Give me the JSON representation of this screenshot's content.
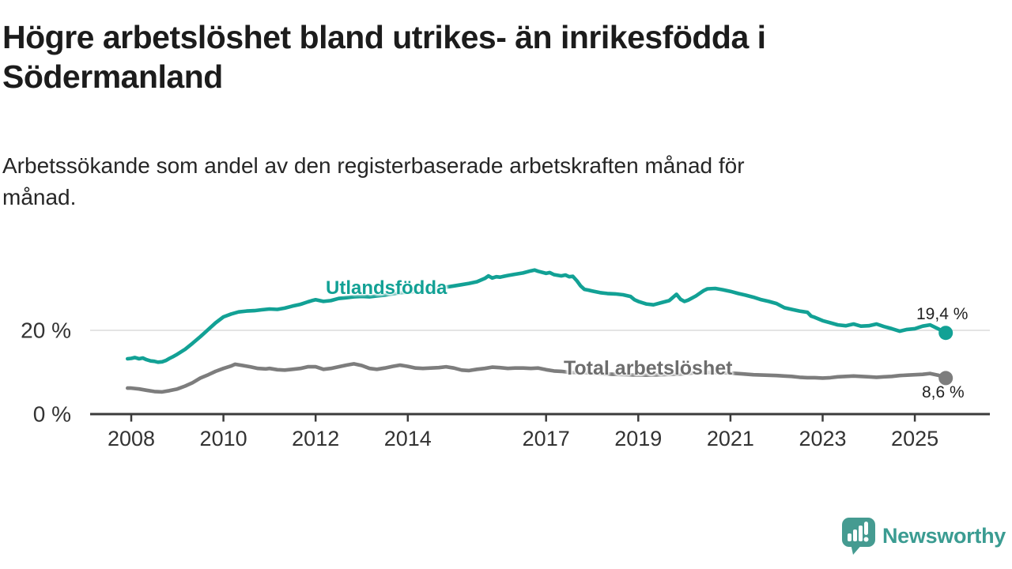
{
  "header": {
    "title_line1": "Högre arbetslöshet bland utrikes- än inrikesfödda i",
    "title_line2": "Södermanland",
    "subtitle_line1": "Arbetssökande som andel av den registerbaserade arbetskraften månad för",
    "subtitle_line2": "månad."
  },
  "colors": {
    "accent_teal": "#12a195",
    "series_gray": "#7d7d7d",
    "series_label_gray": "#6d6d6d",
    "axis": "#3b3b3b",
    "tick_text": "#333333",
    "gridline": "#dbdbdb",
    "logo_teal": "#459b91"
  },
  "branding": {
    "logo_text": "Newsworthy",
    "logo_icon": "speech-bubble-bar-chart"
  },
  "chart_data": {
    "type": "line",
    "title": "Högre arbetslöshet bland utrikes- än inrikesfödda i Södermanland",
    "subtitle": "Arbetssökande som andel av den registerbaserade arbetskraften månad för månad.",
    "unit": "%",
    "ylim": [
      0,
      36
    ],
    "grid": "y-at-20-only",
    "legend_position": "inline-labels",
    "yticks": [
      {
        "value": 0,
        "label": "0 %"
      },
      {
        "value": 20,
        "label": "20 %"
      }
    ],
    "xticks": [
      {
        "value": 2008,
        "label": "2008"
      },
      {
        "value": 2010,
        "label": "2010"
      },
      {
        "value": 2012,
        "label": "2012"
      },
      {
        "value": 2014,
        "label": "2014"
      },
      {
        "value": 2017,
        "label": "2017"
      },
      {
        "value": 2019,
        "label": "2019"
      },
      {
        "value": 2021,
        "label": "2021"
      },
      {
        "value": 2023,
        "label": "2023"
      },
      {
        "value": 2025,
        "label": "2025"
      }
    ],
    "series": [
      {
        "name": "Utlandsfödda",
        "color": "#12a195",
        "end_label": "19,4 %",
        "latest_value": 19.4,
        "points": [
          [
            2007.92,
            13.2
          ],
          [
            2008.0,
            13.3
          ],
          [
            2008.08,
            13.5
          ],
          [
            2008.17,
            13.2
          ],
          [
            2008.25,
            13.4
          ],
          [
            2008.33,
            13.0
          ],
          [
            2008.42,
            12.7
          ],
          [
            2008.5,
            12.6
          ],
          [
            2008.58,
            12.4
          ],
          [
            2008.67,
            12.5
          ],
          [
            2008.75,
            12.8
          ],
          [
            2008.83,
            13.3
          ],
          [
            2008.92,
            13.8
          ],
          [
            2009.0,
            14.3
          ],
          [
            2009.17,
            15.5
          ],
          [
            2009.33,
            16.9
          ],
          [
            2009.5,
            18.5
          ],
          [
            2009.67,
            20.2
          ],
          [
            2009.83,
            21.8
          ],
          [
            2010.0,
            23.2
          ],
          [
            2010.17,
            23.9
          ],
          [
            2010.33,
            24.4
          ],
          [
            2010.5,
            24.6
          ],
          [
            2010.67,
            24.7
          ],
          [
            2010.83,
            24.9
          ],
          [
            2011.0,
            25.1
          ],
          [
            2011.17,
            25.0
          ],
          [
            2011.33,
            25.3
          ],
          [
            2011.5,
            25.8
          ],
          [
            2011.67,
            26.2
          ],
          [
            2011.83,
            26.8
          ],
          [
            2011.92,
            27.1
          ],
          [
            2012.0,
            27.3
          ],
          [
            2012.17,
            26.9
          ],
          [
            2012.33,
            27.1
          ],
          [
            2012.5,
            27.6
          ],
          [
            2012.67,
            27.8
          ],
          [
            2012.83,
            28.0
          ],
          [
            2013.0,
            28.1
          ],
          [
            2013.17,
            28.0
          ],
          [
            2013.33,
            28.2
          ],
          [
            2013.5,
            28.4
          ],
          [
            2013.67,
            28.7
          ],
          [
            2013.83,
            29.0
          ],
          [
            2014.0,
            29.1
          ],
          [
            2014.17,
            29.3
          ],
          [
            2014.33,
            29.5
          ],
          [
            2014.5,
            29.8
          ],
          [
            2014.67,
            30.0
          ],
          [
            2014.83,
            30.3
          ],
          [
            2015.0,
            30.6
          ],
          [
            2015.17,
            30.9
          ],
          [
            2015.33,
            31.2
          ],
          [
            2015.5,
            31.6
          ],
          [
            2015.67,
            32.4
          ],
          [
            2015.75,
            33.0
          ],
          [
            2015.83,
            32.5
          ],
          [
            2015.92,
            32.8
          ],
          [
            2016.0,
            32.7
          ],
          [
            2016.17,
            33.1
          ],
          [
            2016.33,
            33.4
          ],
          [
            2016.5,
            33.7
          ],
          [
            2016.67,
            34.2
          ],
          [
            2016.75,
            34.4
          ],
          [
            2016.83,
            34.1
          ],
          [
            2017.0,
            33.6
          ],
          [
            2017.08,
            33.8
          ],
          [
            2017.17,
            33.3
          ],
          [
            2017.33,
            33.0
          ],
          [
            2017.42,
            33.2
          ],
          [
            2017.5,
            32.8
          ],
          [
            2017.58,
            32.9
          ],
          [
            2017.67,
            31.8
          ],
          [
            2017.75,
            30.6
          ],
          [
            2017.83,
            29.8
          ],
          [
            2017.92,
            29.6
          ],
          [
            2018.0,
            29.4
          ],
          [
            2018.17,
            29.0
          ],
          [
            2018.33,
            28.8
          ],
          [
            2018.5,
            28.7
          ],
          [
            2018.67,
            28.5
          ],
          [
            2018.83,
            28.1
          ],
          [
            2018.92,
            27.3
          ],
          [
            2019.0,
            26.9
          ],
          [
            2019.17,
            26.3
          ],
          [
            2019.33,
            26.1
          ],
          [
            2019.5,
            26.6
          ],
          [
            2019.67,
            27.1
          ],
          [
            2019.83,
            28.6
          ],
          [
            2019.92,
            27.4
          ],
          [
            2020.0,
            26.9
          ],
          [
            2020.08,
            27.2
          ],
          [
            2020.25,
            28.2
          ],
          [
            2020.42,
            29.5
          ],
          [
            2020.5,
            29.9
          ],
          [
            2020.67,
            30.0
          ],
          [
            2020.83,
            29.7
          ],
          [
            2021.0,
            29.3
          ],
          [
            2021.17,
            28.8
          ],
          [
            2021.33,
            28.4
          ],
          [
            2021.5,
            27.9
          ],
          [
            2021.67,
            27.3
          ],
          [
            2021.83,
            26.9
          ],
          [
            2022.0,
            26.4
          ],
          [
            2022.17,
            25.4
          ],
          [
            2022.33,
            25.0
          ],
          [
            2022.5,
            24.6
          ],
          [
            2022.67,
            24.3
          ],
          [
            2022.75,
            23.4
          ],
          [
            2022.83,
            23.1
          ],
          [
            2023.0,
            22.3
          ],
          [
            2023.17,
            21.8
          ],
          [
            2023.33,
            21.3
          ],
          [
            2023.5,
            21.1
          ],
          [
            2023.67,
            21.5
          ],
          [
            2023.83,
            21.0
          ],
          [
            2024.0,
            21.1
          ],
          [
            2024.17,
            21.5
          ],
          [
            2024.33,
            20.9
          ],
          [
            2024.5,
            20.4
          ],
          [
            2024.67,
            19.8
          ],
          [
            2024.83,
            20.2
          ],
          [
            2025.0,
            20.4
          ],
          [
            2025.17,
            21.0
          ],
          [
            2025.33,
            21.3
          ],
          [
            2025.5,
            20.4
          ],
          [
            2025.67,
            19.4
          ]
        ]
      },
      {
        "name": "Total arbetslöshet",
        "color": "#7d7d7d",
        "end_label": "8,6 %",
        "latest_value": 8.6,
        "points": [
          [
            2007.92,
            6.2
          ],
          [
            2008.0,
            6.2
          ],
          [
            2008.17,
            6.0
          ],
          [
            2008.33,
            5.7
          ],
          [
            2008.5,
            5.4
          ],
          [
            2008.67,
            5.3
          ],
          [
            2008.83,
            5.6
          ],
          [
            2009.0,
            6.0
          ],
          [
            2009.17,
            6.7
          ],
          [
            2009.33,
            7.5
          ],
          [
            2009.5,
            8.6
          ],
          [
            2009.67,
            9.4
          ],
          [
            2009.83,
            10.2
          ],
          [
            2010.0,
            10.9
          ],
          [
            2010.17,
            11.5
          ],
          [
            2010.25,
            11.9
          ],
          [
            2010.42,
            11.6
          ],
          [
            2010.58,
            11.3
          ],
          [
            2010.75,
            10.9
          ],
          [
            2010.92,
            10.8
          ],
          [
            2011.0,
            10.9
          ],
          [
            2011.17,
            10.6
          ],
          [
            2011.33,
            10.5
          ],
          [
            2011.5,
            10.7
          ],
          [
            2011.67,
            10.9
          ],
          [
            2011.83,
            11.3
          ],
          [
            2012.0,
            11.3
          ],
          [
            2012.17,
            10.7
          ],
          [
            2012.33,
            10.9
          ],
          [
            2012.5,
            11.3
          ],
          [
            2012.67,
            11.7
          ],
          [
            2012.83,
            12.0
          ],
          [
            2013.0,
            11.6
          ],
          [
            2013.17,
            10.9
          ],
          [
            2013.33,
            10.7
          ],
          [
            2013.5,
            11.0
          ],
          [
            2013.67,
            11.4
          ],
          [
            2013.83,
            11.7
          ],
          [
            2014.0,
            11.4
          ],
          [
            2014.17,
            11.0
          ],
          [
            2014.33,
            10.9
          ],
          [
            2014.5,
            11.0
          ],
          [
            2014.67,
            11.1
          ],
          [
            2014.83,
            11.3
          ],
          [
            2015.0,
            11.0
          ],
          [
            2015.17,
            10.5
          ],
          [
            2015.33,
            10.4
          ],
          [
            2015.5,
            10.7
          ],
          [
            2015.67,
            10.9
          ],
          [
            2015.83,
            11.2
          ],
          [
            2016.0,
            11.1
          ],
          [
            2016.17,
            10.9
          ],
          [
            2016.33,
            11.0
          ],
          [
            2016.5,
            11.0
          ],
          [
            2016.67,
            10.9
          ],
          [
            2016.83,
            11.0
          ],
          [
            2017.0,
            10.6
          ],
          [
            2017.17,
            10.3
          ],
          [
            2017.33,
            10.2
          ],
          [
            2017.5,
            10.0
          ],
          [
            2017.67,
            9.9
          ],
          [
            2017.83,
            9.9
          ],
          [
            2018.0,
            9.8
          ],
          [
            2018.25,
            9.6
          ],
          [
            2018.5,
            9.5
          ],
          [
            2018.75,
            9.4
          ],
          [
            2019.0,
            9.3
          ],
          [
            2019.25,
            9.3
          ],
          [
            2019.5,
            9.4
          ],
          [
            2019.75,
            9.5
          ],
          [
            2020.0,
            9.6
          ],
          [
            2020.25,
            9.9
          ],
          [
            2020.5,
            10.0
          ],
          [
            2020.75,
            9.9
          ],
          [
            2021.0,
            9.8
          ],
          [
            2021.25,
            9.6
          ],
          [
            2021.5,
            9.4
          ],
          [
            2021.75,
            9.3
          ],
          [
            2022.0,
            9.2
          ],
          [
            2022.17,
            9.1
          ],
          [
            2022.33,
            9.0
          ],
          [
            2022.5,
            8.8
          ],
          [
            2022.67,
            8.7
          ],
          [
            2022.83,
            8.7
          ],
          [
            2023.0,
            8.6
          ],
          [
            2023.17,
            8.7
          ],
          [
            2023.33,
            8.9
          ],
          [
            2023.5,
            9.0
          ],
          [
            2023.67,
            9.1
          ],
          [
            2023.83,
            9.0
          ],
          [
            2024.0,
            8.9
          ],
          [
            2024.17,
            8.8
          ],
          [
            2024.33,
            8.9
          ],
          [
            2024.5,
            9.0
          ],
          [
            2024.67,
            9.2
          ],
          [
            2024.83,
            9.3
          ],
          [
            2025.0,
            9.4
          ],
          [
            2025.17,
            9.5
          ],
          [
            2025.33,
            9.7
          ],
          [
            2025.5,
            9.3
          ],
          [
            2025.67,
            8.6
          ]
        ]
      }
    ]
  }
}
